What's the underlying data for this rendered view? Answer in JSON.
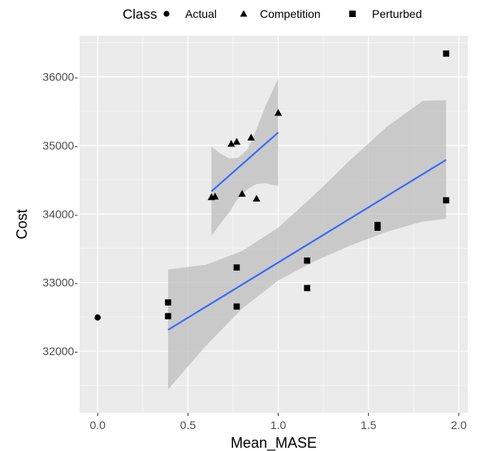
{
  "chart_data": {
    "type": "scatter",
    "xlabel": "Mean_MASE",
    "ylabel": "Cost",
    "xlim": [
      -0.1,
      2.05
    ],
    "ylim": [
      31100,
      36600
    ],
    "x_ticks": [
      0.0,
      0.5,
      1.0,
      1.5,
      2.0
    ],
    "x_tick_labels": [
      "0.0",
      "0.5",
      "1.0",
      "1.5",
      "2.0"
    ],
    "y_ticks": [
      32000,
      33000,
      34000,
      35000,
      36000
    ],
    "y_tick_labels": [
      "32000-",
      "33000-",
      "34000-",
      "35000-",
      "36000-"
    ],
    "grid": true,
    "legend": {
      "title": "Class",
      "position": "top",
      "entries": [
        "Actual",
        "Competition",
        "Perturbed"
      ]
    },
    "colors": {
      "panel": "#ebebeb",
      "grid_major": "#ffffff",
      "points": "#000000",
      "fit_line": "#3366ff",
      "ribbon": "#bebebe"
    },
    "series": [
      {
        "name": "Actual",
        "shape": "circle",
        "points": [
          [
            0.0,
            32490
          ]
        ]
      },
      {
        "name": "Competition",
        "shape": "triangle",
        "points": [
          [
            0.63,
            34240
          ],
          [
            0.65,
            34250
          ],
          [
            0.74,
            35020
          ],
          [
            0.77,
            35050
          ],
          [
            0.8,
            34290
          ],
          [
            0.85,
            35110
          ],
          [
            0.88,
            34220
          ],
          [
            1.0,
            35470
          ]
        ],
        "fit": {
          "x_range": [
            0.63,
            1.0
          ],
          "y_range": [
            34330,
            35190
          ],
          "band_x": [
            0.63,
            0.68,
            0.73,
            0.78,
            0.83,
            0.88,
            0.93,
            0.98,
            1.0
          ],
          "band_lower": [
            33680,
            33860,
            34030,
            34240,
            34360,
            34440,
            34450,
            34420,
            34410
          ],
          "band_upper": [
            34980,
            34880,
            34810,
            34820,
            34940,
            35240,
            35580,
            35860,
            35970
          ]
        }
      },
      {
        "name": "Perturbed",
        "shape": "square",
        "points": [
          [
            0.39,
            32710
          ],
          [
            0.39,
            32510
          ],
          [
            0.77,
            33220
          ],
          [
            0.77,
            32650
          ],
          [
            1.16,
            33320
          ],
          [
            1.16,
            32920
          ],
          [
            1.55,
            33840
          ],
          [
            1.55,
            33800
          ],
          [
            1.93,
            36340
          ],
          [
            1.93,
            34200
          ]
        ],
        "fit": {
          "x_range": [
            0.39,
            1.93
          ],
          "y_range": [
            32310,
            34790
          ],
          "band_x": [
            0.39,
            0.6,
            0.8,
            1.0,
            1.2,
            1.4,
            1.6,
            1.8,
            1.93
          ],
          "band_lower": [
            31440,
            32080,
            32620,
            33030,
            33310,
            33540,
            33740,
            33890,
            33930
          ],
          "band_upper": [
            33190,
            33260,
            33460,
            33800,
            34280,
            34790,
            35270,
            35650,
            35660
          ]
        }
      }
    ]
  }
}
